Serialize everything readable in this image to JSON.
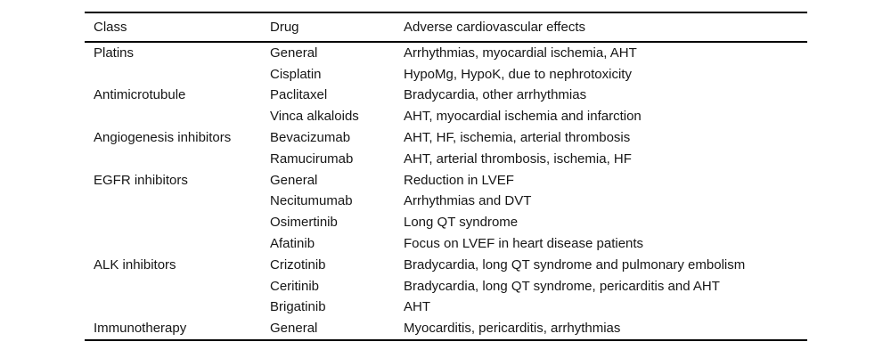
{
  "table": {
    "columns": [
      {
        "label": "Class"
      },
      {
        "label": "Drug"
      },
      {
        "label": "Adverse cardiovascular effects"
      }
    ],
    "rows": [
      {
        "class": "Platins",
        "drug": "General",
        "effects": "Arrhythmias, myocardial ischemia, AHT"
      },
      {
        "class": "",
        "drug": "Cisplatin",
        "effects": "HypoMg, HypoK, due to nephrotoxicity"
      },
      {
        "class": "Antimicrotubule",
        "drug": "Paclitaxel",
        "effects": "Bradycardia, other arrhythmias"
      },
      {
        "class": "",
        "drug": "Vinca alkaloids",
        "effects": "AHT, myocardial ischemia and infarction"
      },
      {
        "class": "Angiogenesis inhibitors",
        "drug": "Bevacizumab",
        "effects": "AHT, HF, ischemia, arterial thrombosis"
      },
      {
        "class": "",
        "drug": "Ramucirumab",
        "effects": "AHT, arterial thrombosis, ischemia, HF"
      },
      {
        "class": "EGFR inhibitors",
        "drug": "General",
        "effects": "Reduction in LVEF"
      },
      {
        "class": "",
        "drug": "Necitumumab",
        "effects": "Arrhythmias and DVT"
      },
      {
        "class": "",
        "drug": "Osimertinib",
        "effects": "Long QT syndrome"
      },
      {
        "class": "",
        "drug": "Afatinib",
        "effects": "Focus on LVEF in heart disease patients"
      },
      {
        "class": "ALK inhibitors",
        "drug": "Crizotinib",
        "effects": "Bradycardia, long QT syndrome and pulmonary embolism"
      },
      {
        "class": "",
        "drug": "Ceritinib",
        "effects": "Bradycardia, long QT syndrome, pericarditis and AHT"
      },
      {
        "class": "",
        "drug": "Brigatinib",
        "effects": "AHT"
      },
      {
        "class": "Immunotherapy",
        "drug": "General",
        "effects": "Myocarditis, pericarditis, arrhythmias"
      }
    ],
    "colors": {
      "background": "#ffffff",
      "text": "#161616",
      "rule": "#000000"
    }
  }
}
